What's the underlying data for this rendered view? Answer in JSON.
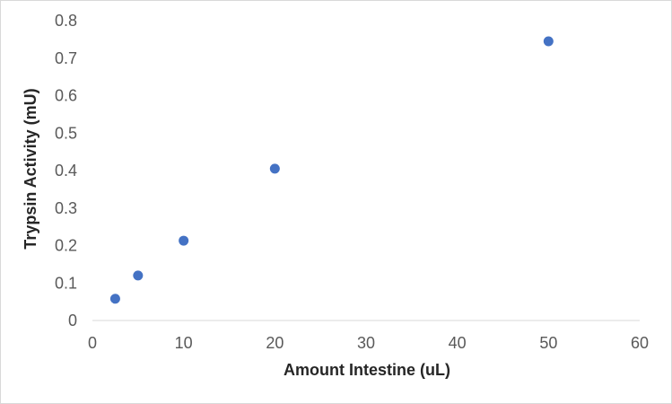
{
  "chart_data": {
    "type": "scatter",
    "title": "",
    "xlabel": "Amount Intestine (uL)",
    "ylabel": "Trypsin Activity (mU)",
    "xlim": [
      0,
      60
    ],
    "ylim": [
      0,
      0.8
    ],
    "xticks": [
      "0",
      "10",
      "20",
      "30",
      "40",
      "50",
      "60"
    ],
    "yticks": [
      "0",
      "0.1",
      "0.2",
      "0.3",
      "0.4",
      "0.5",
      "0.6",
      "0.7",
      "0.8"
    ],
    "grid": false,
    "legend": "none",
    "marker_color": "#4472c4",
    "series": [
      {
        "x": [
          2.5,
          5,
          10,
          20,
          50
        ],
        "y": [
          0.058,
          0.12,
          0.213,
          0.405,
          0.745
        ]
      }
    ]
  }
}
